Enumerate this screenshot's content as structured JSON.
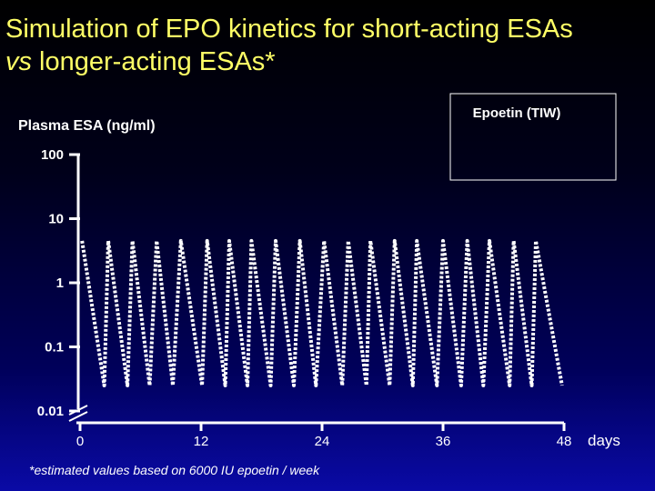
{
  "title_line1": "Simulation of EPO kinetics for short-acting ESAs",
  "title_line2_italic": "vs",
  "title_line2_rest": " longer-acting ESAs*",
  "footnote": "*estimated values based on 6000 IU epoetin / week",
  "colors": {
    "title": "#ffff66",
    "text": "#ffffff",
    "series": "#ffffff"
  },
  "chart_data": {
    "type": "line",
    "title": "",
    "ylabel": "Plasma ESA (ng/ml)",
    "xlabel": "days",
    "yscale": "log",
    "ylim": [
      0.01,
      100
    ],
    "xlim": [
      0,
      48
    ],
    "x_ticks": [
      "0",
      "12",
      "24",
      "36",
      "48"
    ],
    "y_ticks": [
      "0.01",
      "0.1",
      "1",
      "10",
      "100"
    ],
    "legend": [
      "Epoetin (TIW)"
    ],
    "legend_position": "top-right",
    "axis_break": "y",
    "series": [
      {
        "name": "Epoetin (TIW)",
        "style": "dotted",
        "x": [
          0.2,
          2.4,
          2.8,
          4.7,
          5.2,
          6.9,
          7.6,
          9.2,
          10.0,
          12.1,
          12.6,
          14.4,
          14.8,
          16.6,
          17.0,
          18.9,
          19.4,
          21.2,
          21.8,
          23.4,
          24.2,
          26.0,
          26.6,
          28.4,
          28.8,
          30.7,
          31.2,
          33.0,
          33.4,
          35.4,
          36.0,
          37.8,
          38.4,
          40.0,
          40.6,
          42.6,
          43.0,
          44.8,
          45.2,
          47.8
        ],
        "y": [
          4.5,
          0.025,
          4.5,
          0.025,
          4.5,
          0.025,
          4.5,
          0.025,
          4.5,
          0.025,
          4.5,
          0.025,
          4.5,
          0.025,
          4.5,
          0.025,
          4.5,
          0.025,
          4.5,
          0.025,
          4.5,
          0.025,
          4.5,
          0.025,
          4.5,
          0.025,
          4.5,
          0.025,
          4.5,
          0.025,
          4.5,
          0.025,
          4.5,
          0.025,
          4.5,
          0.025,
          4.5,
          0.025,
          4.5,
          0.025
        ]
      }
    ]
  }
}
